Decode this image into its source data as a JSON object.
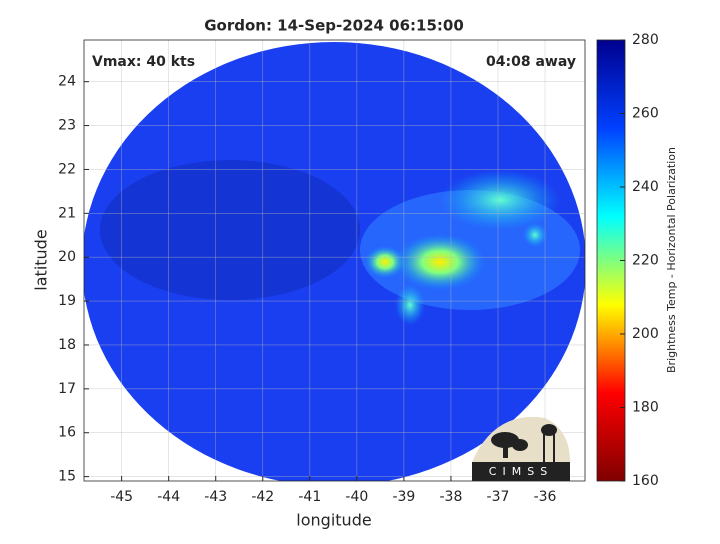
{
  "chart_data": {
    "type": "map",
    "title": "Gordon: 14-Sep-2024 06:15:00",
    "annotations": [
      "Vmax: 40 kts",
      "04:08 away"
    ],
    "x_label": "longitude",
    "y_label": "latitude",
    "xlim": [
      -45.8,
      -35.15
    ],
    "ylim": [
      14.9,
      24.95
    ],
    "xticks": [
      -45,
      -44,
      -43,
      -42,
      -41,
      -40,
      -39,
      -38,
      -37,
      -36
    ],
    "yticks": [
      15,
      16,
      17,
      18,
      19,
      20,
      21,
      22,
      23,
      24
    ],
    "grid": true,
    "colorbar": {
      "label": "Brightness Temp - Horizontal Polarization",
      "lim": [
        160,
        280
      ],
      "ticks": [
        160,
        180,
        200,
        220,
        240,
        260,
        280
      ],
      "colors": [
        "#800000",
        "#ff0000",
        "#ffff00",
        "#00ffff",
        "#0040ff",
        "#00008f"
      ]
    },
    "logo_text": "CIMSS"
  }
}
